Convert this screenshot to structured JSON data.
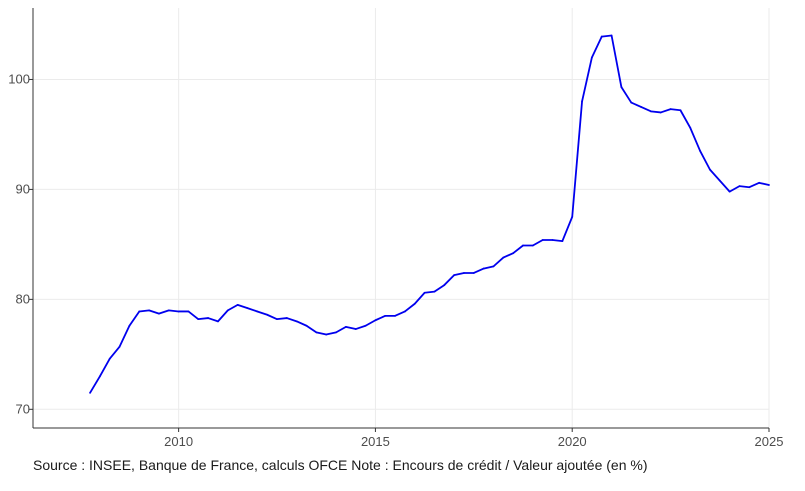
{
  "caption": "Source : INSEE, Banque de France, calculs OFCE Note : Encours de crédit / Valeur ajoutée (en %)",
  "chart_data": {
    "type": "line",
    "title": "",
    "xlabel": "",
    "ylabel": "",
    "xlim": [
      2006.3,
      2025.0
    ],
    "ylim": [
      68.3,
      106.5
    ],
    "x_ticks": [
      2010,
      2015,
      2020,
      2025
    ],
    "x_tick_labels": [
      "2010",
      "2015",
      "2020",
      "2025"
    ],
    "y_ticks": [
      70,
      80,
      90,
      100
    ],
    "y_tick_labels": [
      "70",
      "80",
      "90",
      "100"
    ],
    "grid": true,
    "legend": "none",
    "colors": {
      "line": "#0000ee",
      "axis": "#333333",
      "grid": "#ebebeb"
    },
    "series": [
      {
        "x": [
          2007.75,
          2008.0,
          2008.25,
          2008.5,
          2008.75,
          2009.0,
          2009.25,
          2009.5,
          2009.75,
          2010.0,
          2010.25,
          2010.5,
          2010.75,
          2011.0,
          2011.25,
          2011.5,
          2011.75,
          2012.0,
          2012.25,
          2012.5,
          2012.75,
          2013.0,
          2013.25,
          2013.5,
          2013.75,
          2014.0,
          2014.25,
          2014.5,
          2014.75,
          2015.0,
          2015.25,
          2015.5,
          2015.75,
          2016.0,
          2016.25,
          2016.5,
          2016.75,
          2017.0,
          2017.25,
          2017.5,
          2017.75,
          2018.0,
          2018.25,
          2018.5,
          2018.75,
          2019.0,
          2019.25,
          2019.5,
          2019.75,
          2020.0,
          2020.25,
          2020.5,
          2020.75,
          2021.0,
          2021.25,
          2021.5,
          2021.75,
          2022.0,
          2022.25,
          2022.5,
          2022.75,
          2023.0,
          2023.25,
          2023.5,
          2023.75,
          2024.0,
          2024.25,
          2024.5,
          2024.75,
          2025.0
        ],
        "y": [
          71.5,
          73.0,
          74.6,
          75.7,
          77.6,
          78.9,
          79.0,
          78.7,
          79.0,
          78.9,
          78.9,
          78.2,
          78.3,
          78.0,
          79.0,
          79.5,
          79.2,
          78.9,
          78.6,
          78.2,
          78.3,
          78.0,
          77.6,
          77.0,
          76.8,
          77.0,
          77.5,
          77.3,
          77.6,
          78.1,
          78.5,
          78.5,
          78.9,
          79.6,
          80.6,
          80.7,
          81.3,
          82.2,
          82.4,
          82.4,
          82.8,
          83.0,
          83.8,
          84.2,
          84.9,
          84.9,
          85.4,
          85.4,
          85.3,
          87.5,
          98.0,
          102.0,
          103.9,
          104.0,
          99.3,
          97.9,
          97.5,
          97.1,
          97.0,
          97.3,
          97.2,
          95.6,
          93.5,
          91.8,
          90.8,
          89.8,
          90.3,
          90.2,
          90.6,
          90.4
        ]
      }
    ]
  }
}
